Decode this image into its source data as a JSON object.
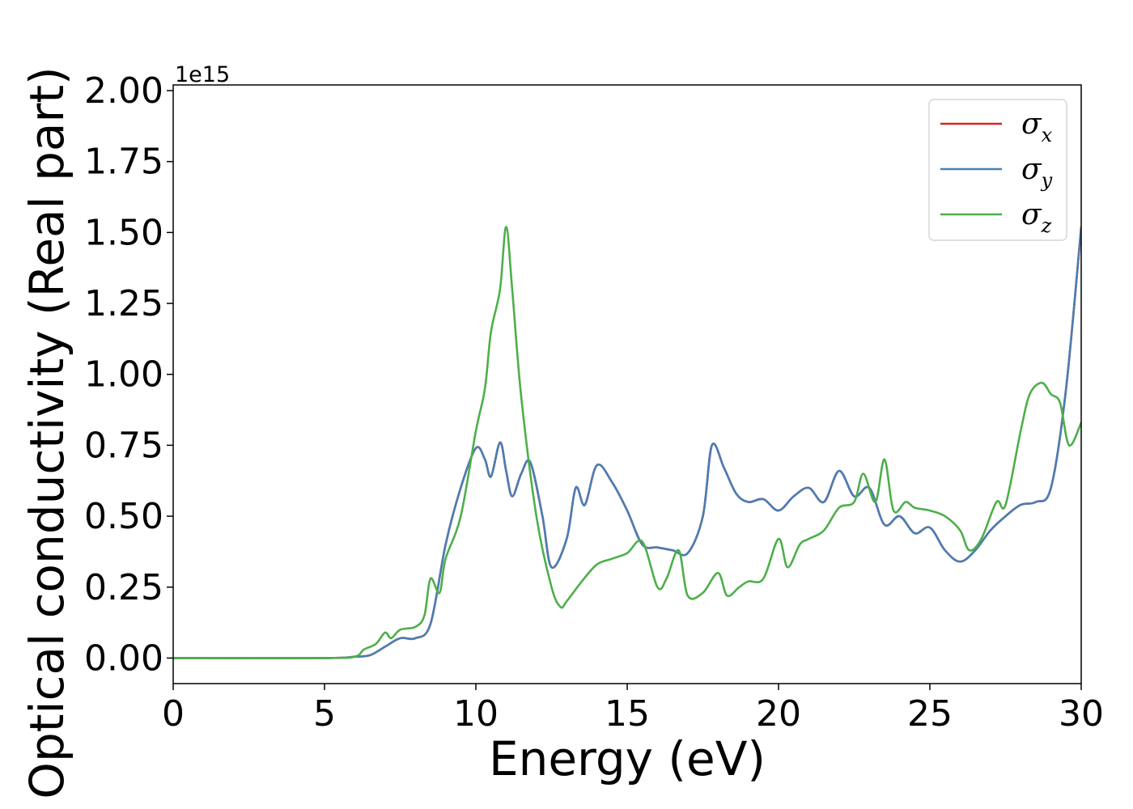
{
  "chart_data": {
    "type": "line",
    "xlabel": "Energy (eV)",
    "ylabel": "Optical conductivity (Real part)",
    "y_offset_label": "1e15",
    "xlim": [
      0,
      30
    ],
    "ylim": [
      -0.09,
      2.02
    ],
    "x_ticks": [
      "0",
      "5",
      "10",
      "15",
      "20",
      "25",
      "30"
    ],
    "y_ticks": [
      "0.00",
      "0.25",
      "0.50",
      "0.75",
      "1.00",
      "1.25",
      "1.50",
      "1.75",
      "2.00"
    ],
    "legend_position": "top-right",
    "colors": {
      "x": "#d62728",
      "y": "#4a7eb3",
      "z": "#4daf4a"
    },
    "series": [
      {
        "name": "σx",
        "legend_base": "σ",
        "legend_sub": "x",
        "x": [
          0,
          5,
          6,
          6.5,
          7,
          7.5,
          8,
          8.5,
          9,
          9.5,
          10,
          10.3,
          10.5,
          10.8,
          11,
          11.2,
          11.5,
          11.8,
          12.2,
          12.5,
          13,
          13.3,
          13.6,
          14,
          14.5,
          15,
          15.5,
          16,
          16.5,
          17,
          17.5,
          17.8,
          18.2,
          18.6,
          19,
          19.5,
          20,
          20.5,
          21,
          21.5,
          22,
          22.5,
          23,
          23.5,
          24,
          24.5,
          25,
          25.5,
          26,
          26.5,
          27,
          27.5,
          28,
          28.5,
          29,
          29.5,
          30
        ],
        "y": [
          0,
          0,
          0.005,
          0.01,
          0.04,
          0.07,
          0.07,
          0.12,
          0.4,
          0.6,
          0.74,
          0.7,
          0.64,
          0.76,
          0.66,
          0.57,
          0.65,
          0.69,
          0.5,
          0.32,
          0.42,
          0.6,
          0.54,
          0.68,
          0.62,
          0.52,
          0.4,
          0.39,
          0.38,
          0.37,
          0.5,
          0.75,
          0.67,
          0.58,
          0.55,
          0.56,
          0.52,
          0.57,
          0.6,
          0.55,
          0.66,
          0.57,
          0.6,
          0.47,
          0.5,
          0.44,
          0.46,
          0.38,
          0.34,
          0.38,
          0.45,
          0.5,
          0.54,
          0.55,
          0.6,
          0.95,
          1.52
        ]
      },
      {
        "name": "σy",
        "legend_base": "σ",
        "legend_sub": "y",
        "x": [
          0,
          5,
          6,
          6.5,
          7,
          7.5,
          8,
          8.5,
          9,
          9.5,
          10,
          10.3,
          10.5,
          10.8,
          11,
          11.2,
          11.5,
          11.8,
          12.2,
          12.5,
          13,
          13.3,
          13.6,
          14,
          14.5,
          15,
          15.5,
          16,
          16.5,
          17,
          17.5,
          17.8,
          18.2,
          18.6,
          19,
          19.5,
          20,
          20.5,
          21,
          21.5,
          22,
          22.5,
          23,
          23.5,
          24,
          24.5,
          25,
          25.5,
          26,
          26.5,
          27,
          27.5,
          28,
          28.5,
          29,
          29.5,
          30
        ],
        "y": [
          0,
          0,
          0.005,
          0.01,
          0.04,
          0.07,
          0.07,
          0.12,
          0.4,
          0.6,
          0.74,
          0.7,
          0.64,
          0.76,
          0.66,
          0.57,
          0.65,
          0.69,
          0.5,
          0.32,
          0.42,
          0.6,
          0.54,
          0.68,
          0.62,
          0.52,
          0.4,
          0.39,
          0.38,
          0.37,
          0.5,
          0.75,
          0.67,
          0.58,
          0.55,
          0.56,
          0.52,
          0.57,
          0.6,
          0.55,
          0.66,
          0.57,
          0.6,
          0.47,
          0.5,
          0.44,
          0.46,
          0.38,
          0.34,
          0.38,
          0.45,
          0.5,
          0.54,
          0.55,
          0.6,
          0.95,
          1.52
        ]
      },
      {
        "name": "σz",
        "legend_base": "σ",
        "legend_sub": "z",
        "x": [
          0,
          5,
          6,
          6.3,
          6.7,
          7,
          7.2,
          7.5,
          8,
          8.3,
          8.5,
          8.8,
          9,
          9.5,
          10,
          10.3,
          10.5,
          10.8,
          11,
          11.2,
          11.5,
          12,
          12.5,
          12.8,
          13,
          13.5,
          14,
          14.5,
          15,
          15.5,
          16,
          16.3,
          16.7,
          17,
          17.5,
          18,
          18.3,
          18.7,
          19,
          19.5,
          20,
          20.3,
          20.7,
          21,
          21.5,
          22,
          22.5,
          22.8,
          23.2,
          23.5,
          23.8,
          24.2,
          24.5,
          25,
          25.5,
          26,
          26.3,
          26.7,
          27.2,
          27.5,
          28,
          28.3,
          28.7,
          29,
          29.3,
          29.6,
          30
        ],
        "y": [
          0,
          0,
          0.005,
          0.03,
          0.05,
          0.09,
          0.07,
          0.1,
          0.11,
          0.15,
          0.28,
          0.23,
          0.35,
          0.5,
          0.8,
          0.95,
          1.15,
          1.3,
          1.52,
          1.3,
          0.92,
          0.5,
          0.25,
          0.18,
          0.2,
          0.27,
          0.33,
          0.35,
          0.37,
          0.41,
          0.25,
          0.28,
          0.38,
          0.22,
          0.23,
          0.3,
          0.22,
          0.25,
          0.27,
          0.28,
          0.42,
          0.32,
          0.4,
          0.42,
          0.45,
          0.53,
          0.55,
          0.65,
          0.55,
          0.7,
          0.52,
          0.55,
          0.53,
          0.52,
          0.5,
          0.45,
          0.38,
          0.42,
          0.55,
          0.54,
          0.8,
          0.93,
          0.97,
          0.93,
          0.9,
          0.75,
          0.83
        ]
      }
    ]
  }
}
